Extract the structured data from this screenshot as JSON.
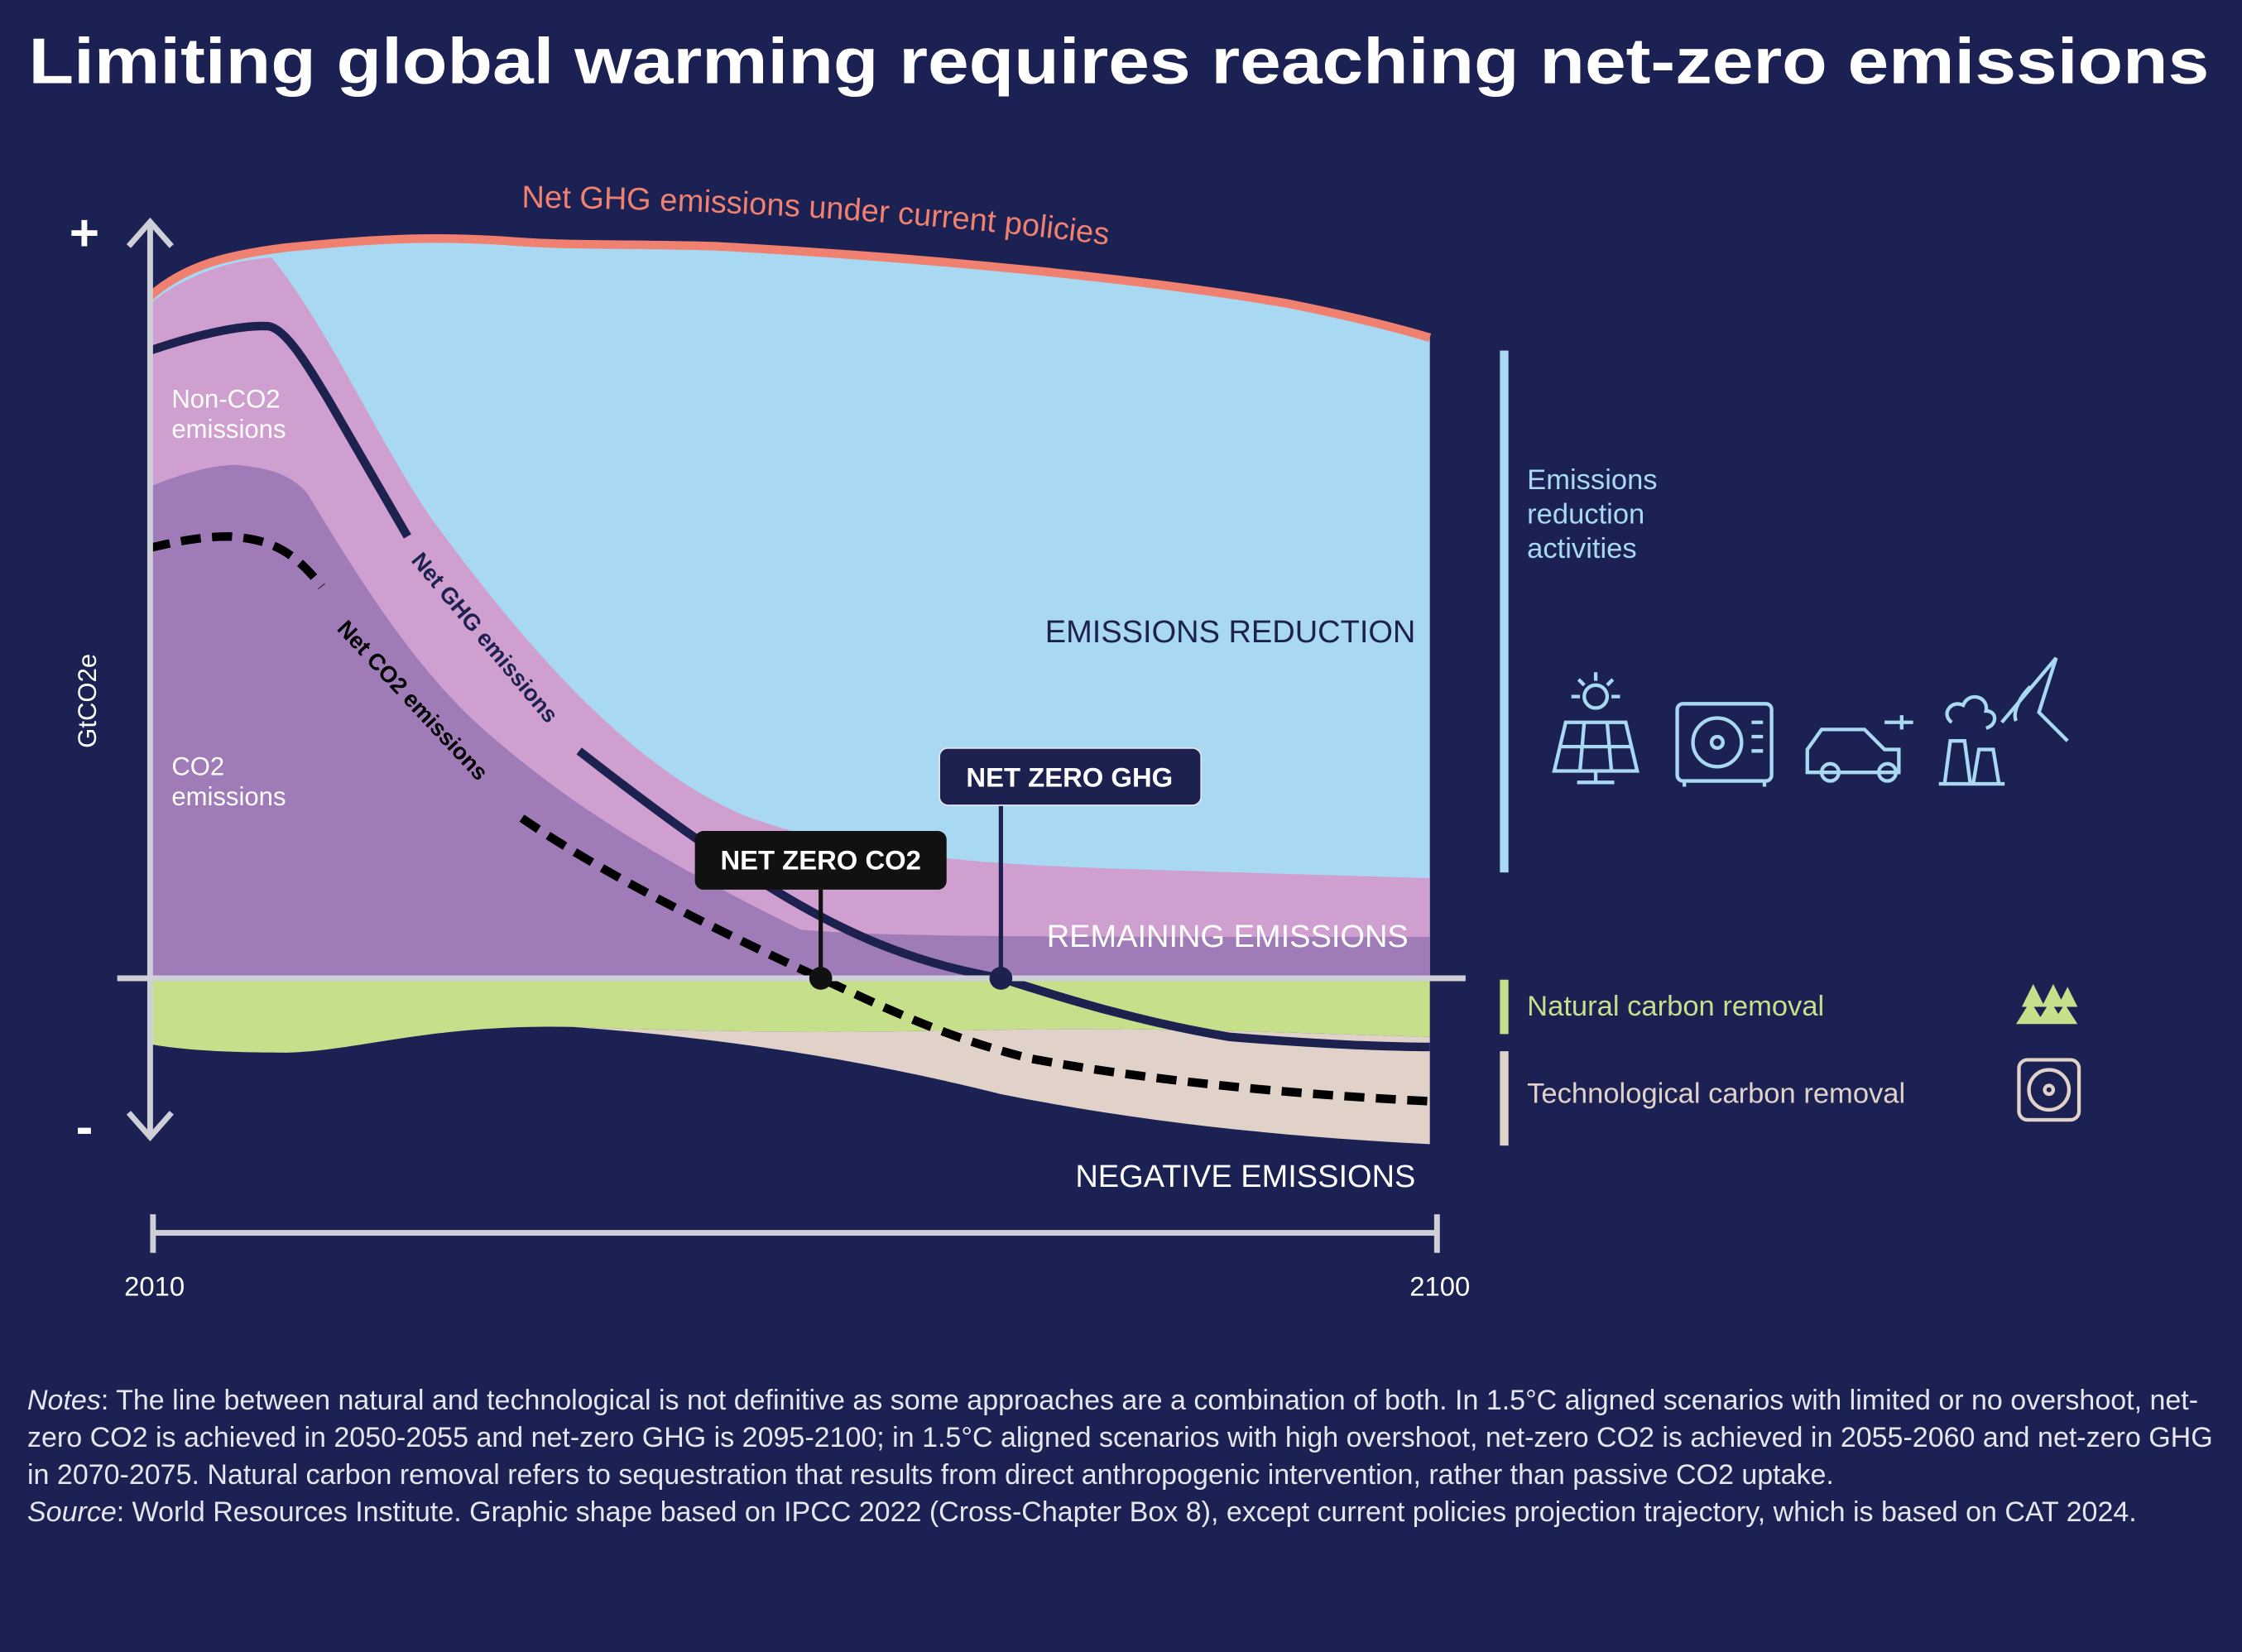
{
  "header": {
    "title": "Limiting global warming requires reaching net-zero emissions"
  },
  "diagram": {
    "current_policies_label": "Net GHG emissions under current policies",
    "axis_plus": "+",
    "axis_minus": "-",
    "axis_label": "GtCO2e",
    "non_co2_label": [
      "Non-CO2",
      "emissions"
    ],
    "co2_label": [
      "CO2",
      "emissions"
    ],
    "net_ghg_line_label": "Net GHG emissions",
    "net_co2_line_label": "Net CO2 emissions",
    "emissions_reduction": "EMISSIONS REDUCTION",
    "remaining_emissions": "REMAINING EMISSIONS",
    "negative_emissions": "NEGATIVE EMISSIONS",
    "net_zero_ghg": "NET ZERO GHG",
    "net_zero_co2": "NET ZERO CO2",
    "legend_reduction": [
      "Emissions",
      "reduction",
      "activities"
    ],
    "legend_natural": "Natural carbon removal",
    "legend_tech": "Technological carbon removal",
    "start_year": "2010",
    "end_year": "2100"
  },
  "footer": {
    "notes_label": "Notes",
    "notes_text": ": The line between natural and technological is not definitive as some approaches are a combination of both. In 1.5°C aligned scenarios with limited or no overshoot, net-zero CO2 is achieved in 2050-2055 and net-zero GHG is 2095-2100; in 1.5°C aligned scenarios with high overshoot, net-zero CO2 is achieved in 2055-2060 and net-zero GHG in 2070-2075. Natural carbon removal refers to sequestration that results from direct anthropogenic intervention, rather than passive CO2 uptake.",
    "source_label": "Source",
    "source_text": ": World Resources Institute. Graphic shape based on IPCC 2022 (Cross-Chapter Box 8), except current policies projection trajectory, which is based on CAT 2024."
  }
}
